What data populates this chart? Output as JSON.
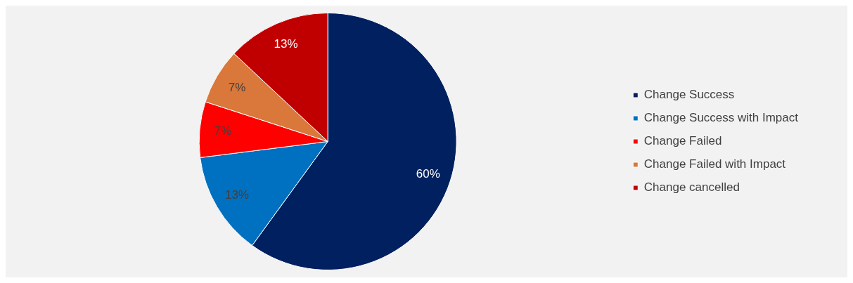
{
  "chart_data": {
    "type": "pie",
    "categories": [
      "Change Success",
      "Change Success with Impact",
      "Change Failed",
      "Change Failed with Impact",
      "Change cancelled"
    ],
    "values": [
      60,
      13,
      7,
      7,
      13
    ],
    "colors": [
      "#002060",
      "#0070c0",
      "#ff0000",
      "#d9783a",
      "#c00000"
    ],
    "value_labels": [
      "60%",
      "13%",
      "7%",
      "7%",
      "13%"
    ],
    "legend": "right"
  }
}
